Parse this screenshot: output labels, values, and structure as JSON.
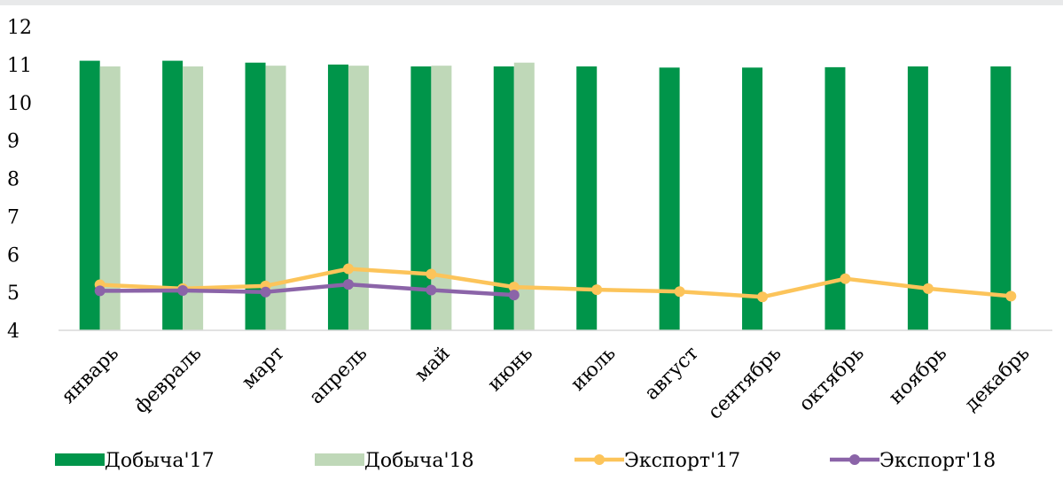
{
  "chart_data": {
    "type": "bar",
    "categories": [
      "январь",
      "февраль",
      "март",
      "апрель",
      "май",
      "июнь",
      "июль",
      "август",
      "сентябрь",
      "октябрь",
      "ноябрь",
      "декабрь"
    ],
    "ylim": [
      4,
      12
    ],
    "yticks": [
      "4",
      "5",
      "6",
      "7",
      "8",
      "9",
      "10",
      "11",
      "12"
    ],
    "grid": false,
    "legend_position": "bottom",
    "bars": [
      {
        "name": "Добыча'17",
        "color": "#00954a",
        "values": [
          11.1,
          11.1,
          11.05,
          11.0,
          10.95,
          10.95,
          10.95,
          10.92,
          10.92,
          10.93,
          10.95,
          10.95
        ]
      },
      {
        "name": "Добыча'18",
        "color": "#bfd8b8",
        "values": [
          10.95,
          10.95,
          10.97,
          10.97,
          10.97,
          11.05,
          null,
          null,
          null,
          null,
          null,
          null
        ]
      }
    ],
    "lines": [
      {
        "name": "Экспорт'17",
        "color": "#fcc45a",
        "values": [
          5.2,
          5.1,
          5.17,
          5.62,
          5.48,
          5.14,
          5.07,
          5.02,
          4.88,
          5.36,
          5.1,
          4.9
        ]
      },
      {
        "name": "Экспорт'18",
        "color": "#8b64a8",
        "values": [
          5.04,
          5.05,
          5.01,
          5.21,
          5.06,
          4.93,
          null,
          null,
          null,
          null,
          null,
          null
        ]
      }
    ]
  }
}
